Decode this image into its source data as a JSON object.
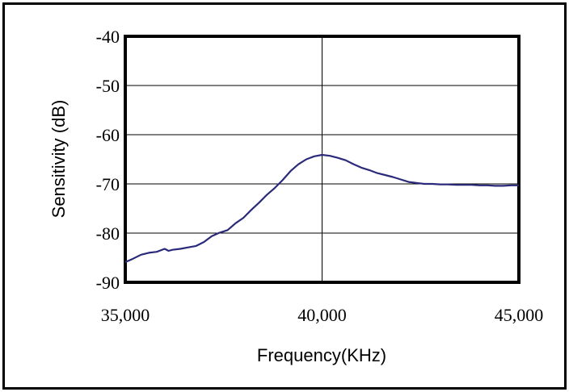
{
  "chart_data": {
    "type": "line",
    "xlabel": "Frequency(KHz)",
    "ylabel": "Sensitivity (dB)",
    "xlim": [
      35000,
      45000
    ],
    "ylim": [
      -90,
      -40
    ],
    "x_ticks": [
      "35,000",
      "40,000",
      "45,000"
    ],
    "y_ticks": [
      "-40",
      "-50",
      "-60",
      "-70",
      "-80",
      "-90"
    ],
    "grid": true,
    "colors": {
      "line": "#2b2a7a",
      "grid": "#000000",
      "frame": "#000000"
    },
    "series": [
      {
        "x": [
          35000,
          35200,
          35400,
          35600,
          35800,
          36000,
          36100,
          36200,
          36400,
          36600,
          36800,
          37000,
          37200,
          37400,
          37600,
          37800,
          38000,
          38200,
          38400,
          38600,
          38800,
          39000,
          39200,
          39400,
          39600,
          39800,
          40000,
          40200,
          40400,
          40600,
          40800,
          41000,
          41200,
          41400,
          41600,
          41800,
          42000,
          42200,
          42400,
          42600,
          42800,
          43000,
          43200,
          43400,
          43600,
          43800,
          44000,
          44200,
          44400,
          44600,
          44800,
          45000
        ],
        "values": [
          -85.9,
          -85.2,
          -84.4,
          -84.0,
          -83.8,
          -83.2,
          -83.6,
          -83.4,
          -83.2,
          -82.9,
          -82.6,
          -81.8,
          -80.6,
          -79.9,
          -79.4,
          -78.0,
          -76.9,
          -75.3,
          -73.8,
          -72.2,
          -70.8,
          -69.2,
          -67.4,
          -66.0,
          -65.0,
          -64.4,
          -64.1,
          -64.3,
          -64.7,
          -65.2,
          -66.0,
          -66.7,
          -67.2,
          -67.8,
          -68.2,
          -68.6,
          -69.1,
          -69.6,
          -69.8,
          -70.0,
          -70.0,
          -70.1,
          -70.1,
          -70.2,
          -70.2,
          -70.2,
          -70.3,
          -70.3,
          -70.4,
          -70.4,
          -70.3,
          -70.3
        ]
      }
    ]
  }
}
